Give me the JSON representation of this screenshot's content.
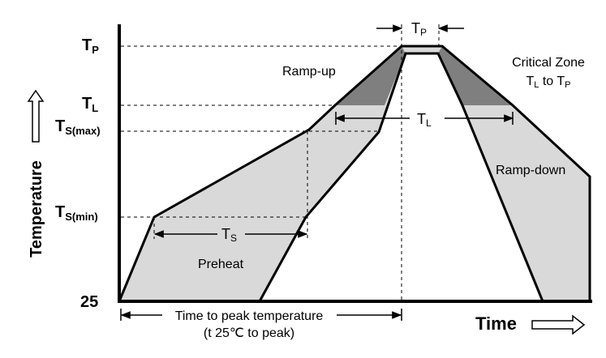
{
  "y_labels": {
    "tp": {
      "main": "T",
      "sub": "P"
    },
    "tl": {
      "main": "T",
      "sub": "L"
    },
    "tsmax": {
      "main": "T",
      "sub": "S(max)"
    },
    "tsmin": {
      "main": "T",
      "sub": "S(min)"
    },
    "t25": "25"
  },
  "axis": {
    "y_title": "Temperature",
    "x_title": "Time"
  },
  "regions": {
    "ramp_up": "Ramp-up",
    "ramp_down": "Ramp-down",
    "preheat": "Preheat",
    "critical_zone_line1": "Critical Zone",
    "critical_zone_line2": {
      "a": "T",
      "a_sub": "L",
      "mid": " to ",
      "b": "T",
      "b_sub": "P"
    }
  },
  "dims": {
    "tp": {
      "main": "T",
      "sub": "P"
    },
    "tl": {
      "main": "T",
      "sub": "L"
    },
    "ts": {
      "main": "T",
      "sub": "S"
    },
    "time_to_peak": "Time to peak temperature",
    "time_to_peak_sub": "(t 25℃ to peak)"
  },
  "colors": {
    "band_fill": "#d9d9d9",
    "critical_fill": "#7f7f7f",
    "line": "#000000"
  }
}
